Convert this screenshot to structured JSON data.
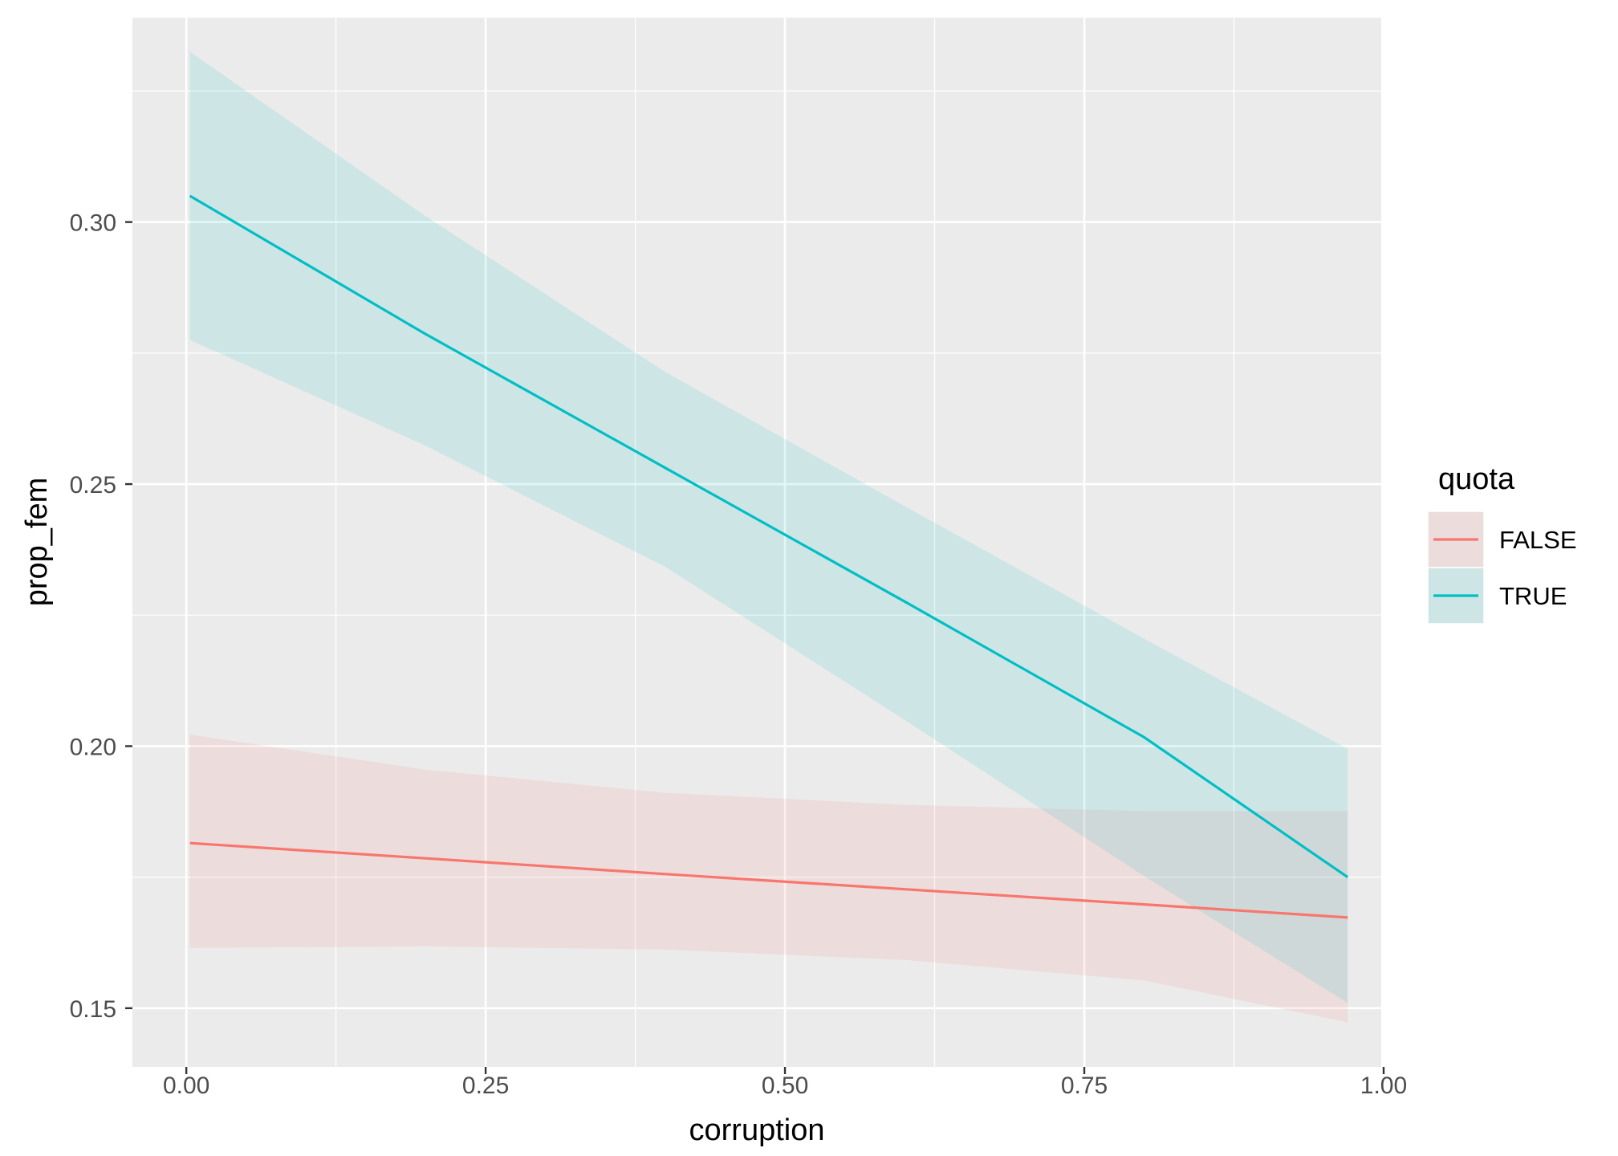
{
  "chart_data": {
    "type": "line",
    "title": "",
    "xlabel": "corruption",
    "ylabel": "prop_fem",
    "xlim": [
      -0.045,
      0.998
    ],
    "ylim": [
      0.1388,
      0.339
    ],
    "x_ticks": [
      0.0,
      0.25,
      0.5,
      0.75,
      1.0
    ],
    "x_tick_labels": [
      "0.00",
      "0.25",
      "0.50",
      "0.75",
      "1.00"
    ],
    "y_ticks": [
      0.15,
      0.2,
      0.25,
      0.3
    ],
    "y_tick_labels": [
      "0.15",
      "0.20",
      "0.25",
      "0.30"
    ],
    "grid": true,
    "panel_background": "#EBEBEB",
    "legend": {
      "title": "quota",
      "position": "right",
      "entries": [
        "FALSE",
        "TRUE"
      ]
    },
    "series": [
      {
        "name": "FALSE",
        "color": "#F8766D",
        "x": [
          0.003,
          0.2,
          0.4,
          0.6,
          0.8,
          0.97
        ],
        "y": [
          0.1815,
          0.1786,
          0.1756,
          0.1727,
          0.1698,
          0.1673
        ],
        "ci_lower": [
          0.1615,
          0.1618,
          0.1612,
          0.1592,
          0.1553,
          0.1473
        ],
        "ci_upper": [
          0.2022,
          0.1955,
          0.1911,
          0.1888,
          0.1876,
          0.1876
        ]
      },
      {
        "name": "TRUE",
        "color": "#00BFC4",
        "x": [
          0.003,
          0.2,
          0.4,
          0.6,
          0.8,
          0.97
        ],
        "y": [
          0.305,
          0.2786,
          0.2531,
          0.2276,
          0.2017,
          0.175
        ],
        "ci_lower": [
          0.2775,
          0.2573,
          0.2342,
          0.205,
          0.1752,
          0.151
        ],
        "ci_upper": [
          0.3325,
          0.3011,
          0.2714,
          0.2458,
          0.2205,
          0.1995
        ]
      }
    ]
  }
}
